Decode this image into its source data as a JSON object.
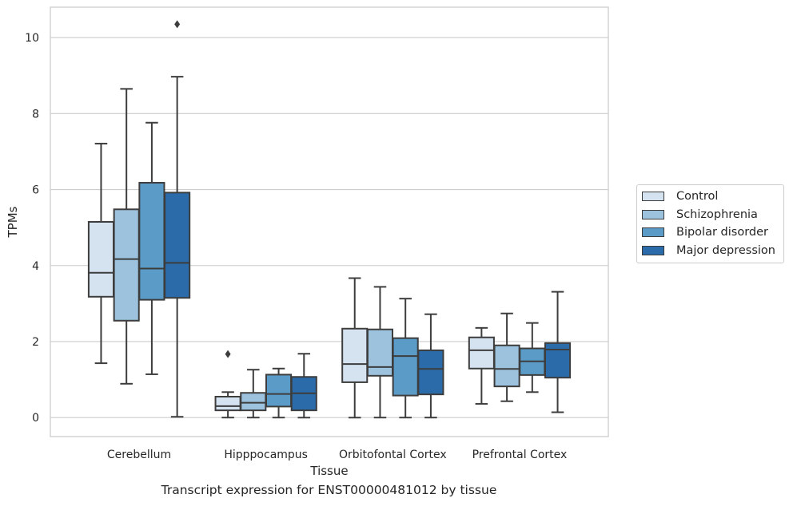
{
  "caption": "Transcript expression for ENST00000481012 by tissue",
  "chart_data": {
    "type": "box",
    "xlabel": "Tissue",
    "ylabel": "TPMs",
    "ylim": [
      -0.5,
      10.8
    ],
    "yticks": [
      0,
      2,
      4,
      6,
      8,
      10
    ],
    "grid": "horizontal",
    "legend_position": "right",
    "categories": [
      "Cerebellum",
      "Hipppocampus",
      "Orbitofontal Cortex",
      "Prefrontal Cortex"
    ],
    "series": [
      {
        "name": "Control",
        "color": "#d5e3f0",
        "boxes": [
          {
            "whislo": 1.43,
            "q1": 3.18,
            "med": 3.81,
            "q3": 5.15,
            "whishi": 7.21,
            "fliers": []
          },
          {
            "whislo": 0.0,
            "q1": 0.19,
            "med": 0.3,
            "q3": 0.55,
            "whishi": 0.67,
            "fliers": [
              1.67
            ]
          },
          {
            "whislo": 0.0,
            "q1": 0.93,
            "med": 1.41,
            "q3": 2.34,
            "whishi": 3.67,
            "fliers": []
          },
          {
            "whislo": 0.36,
            "q1": 1.29,
            "med": 1.77,
            "q3": 2.11,
            "whishi": 2.36,
            "fliers": []
          }
        ]
      },
      {
        "name": "Schizophrenia",
        "color": "#9dc2dd",
        "boxes": [
          {
            "whislo": 0.89,
            "q1": 2.55,
            "med": 4.17,
            "q3": 5.48,
            "whishi": 8.65,
            "fliers": []
          },
          {
            "whislo": 0.0,
            "q1": 0.19,
            "med": 0.39,
            "q3": 0.65,
            "whishi": 1.26,
            "fliers": []
          },
          {
            "whislo": 0.0,
            "q1": 1.1,
            "med": 1.33,
            "q3": 2.32,
            "whishi": 3.44,
            "fliers": []
          },
          {
            "whislo": 0.43,
            "q1": 0.82,
            "med": 1.28,
            "q3": 1.9,
            "whishi": 2.74,
            "fliers": []
          }
        ]
      },
      {
        "name": "Bipolar disorder",
        "color": "#5a9bc8",
        "boxes": [
          {
            "whislo": 1.14,
            "q1": 3.1,
            "med": 3.92,
            "q3": 6.18,
            "whishi": 7.76,
            "fliers": []
          },
          {
            "whislo": 0.0,
            "q1": 0.29,
            "med": 0.62,
            "q3": 1.13,
            "whishi": 1.29,
            "fliers": []
          },
          {
            "whislo": 0.0,
            "q1": 0.58,
            "med": 1.62,
            "q3": 2.09,
            "whishi": 3.13,
            "fliers": []
          },
          {
            "whislo": 0.67,
            "q1": 1.12,
            "med": 1.48,
            "q3": 1.82,
            "whishi": 2.49,
            "fliers": []
          }
        ]
      },
      {
        "name": "Major depression",
        "color": "#2b6ba9",
        "boxes": [
          {
            "whislo": 0.02,
            "q1": 3.15,
            "med": 4.07,
            "q3": 5.92,
            "whishi": 8.97,
            "fliers": [
              10.35
            ]
          },
          {
            "whislo": 0.0,
            "q1": 0.19,
            "med": 0.64,
            "q3": 1.07,
            "whishi": 1.68,
            "fliers": []
          },
          {
            "whislo": 0.0,
            "q1": 0.61,
            "med": 1.28,
            "q3": 1.77,
            "whishi": 2.72,
            "fliers": []
          },
          {
            "whislo": 0.14,
            "q1": 1.05,
            "med": 1.79,
            "q3": 1.96,
            "whishi": 3.31,
            "fliers": []
          }
        ]
      }
    ]
  }
}
